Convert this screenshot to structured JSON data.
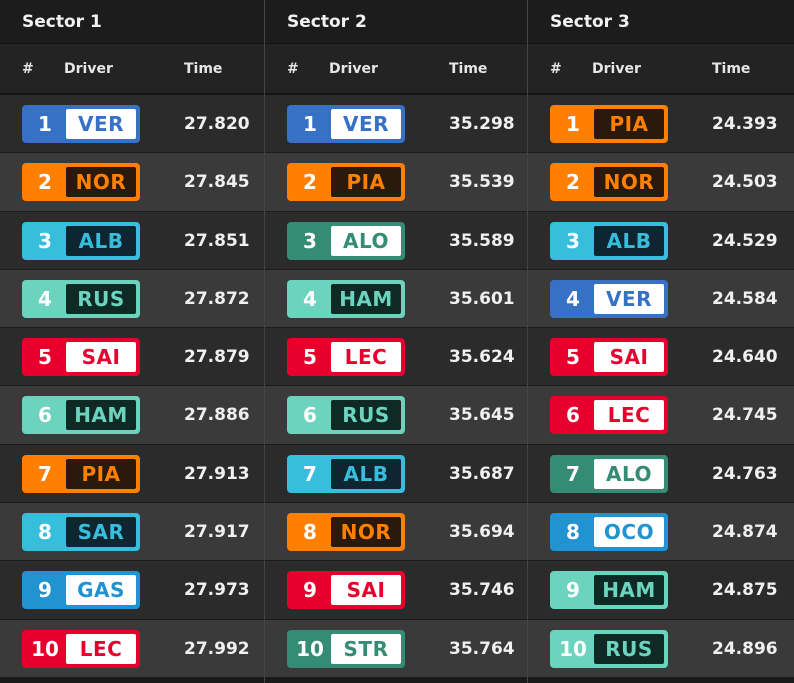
{
  "headers": {
    "pos": "#",
    "driver": "Driver",
    "time": "Time"
  },
  "teams": {
    "redbull": {
      "primary": "#3671c6",
      "inner": "#ffffff",
      "text": "#3671c6"
    },
    "mclaren": {
      "primary": "#ff8000",
      "inner": "#2a1a0c",
      "text": "#ff8000"
    },
    "williams": {
      "primary": "#37bedd",
      "inner": "#0f2530",
      "text": "#37bedd"
    },
    "mercedes": {
      "primary": "#6cd3bf",
      "inner": "#0f2a25",
      "text": "#6cd3bf"
    },
    "ferrari": {
      "primary": "#e8002d",
      "inner": "#ffffff",
      "text": "#e8002d"
    },
    "alpine": {
      "primary": "#2293d1",
      "inner": "#ffffff",
      "text": "#2293d1"
    },
    "aston": {
      "primary": "#358c75",
      "inner": "#ffffff",
      "text": "#358c75"
    }
  },
  "sectors": [
    {
      "title": "Sector 1",
      "rows": [
        {
          "pos": "1",
          "code": "VER",
          "team": "redbull",
          "time": "27.820"
        },
        {
          "pos": "2",
          "code": "NOR",
          "team": "mclaren",
          "time": "27.845"
        },
        {
          "pos": "3",
          "code": "ALB",
          "team": "williams",
          "time": "27.851"
        },
        {
          "pos": "4",
          "code": "RUS",
          "team": "mercedes",
          "time": "27.872"
        },
        {
          "pos": "5",
          "code": "SAI",
          "team": "ferrari",
          "time": "27.879"
        },
        {
          "pos": "6",
          "code": "HAM",
          "team": "mercedes",
          "time": "27.886"
        },
        {
          "pos": "7",
          "code": "PIA",
          "team": "mclaren",
          "time": "27.913"
        },
        {
          "pos": "8",
          "code": "SAR",
          "team": "williams",
          "time": "27.917"
        },
        {
          "pos": "9",
          "code": "GAS",
          "team": "alpine",
          "time": "27.973"
        },
        {
          "pos": "10",
          "code": "LEC",
          "team": "ferrari",
          "time": "27.992"
        }
      ]
    },
    {
      "title": "Sector 2",
      "rows": [
        {
          "pos": "1",
          "code": "VER",
          "team": "redbull",
          "time": "35.298"
        },
        {
          "pos": "2",
          "code": "PIA",
          "team": "mclaren",
          "time": "35.539"
        },
        {
          "pos": "3",
          "code": "ALO",
          "team": "aston",
          "time": "35.589"
        },
        {
          "pos": "4",
          "code": "HAM",
          "team": "mercedes",
          "time": "35.601"
        },
        {
          "pos": "5",
          "code": "LEC",
          "team": "ferrari",
          "time": "35.624"
        },
        {
          "pos": "6",
          "code": "RUS",
          "team": "mercedes",
          "time": "35.645"
        },
        {
          "pos": "7",
          "code": "ALB",
          "team": "williams",
          "time": "35.687"
        },
        {
          "pos": "8",
          "code": "NOR",
          "team": "mclaren",
          "time": "35.694"
        },
        {
          "pos": "9",
          "code": "SAI",
          "team": "ferrari",
          "time": "35.746"
        },
        {
          "pos": "10",
          "code": "STR",
          "team": "aston",
          "time": "35.764"
        }
      ]
    },
    {
      "title": "Sector 3",
      "rows": [
        {
          "pos": "1",
          "code": "PIA",
          "team": "mclaren",
          "time": "24.393"
        },
        {
          "pos": "2",
          "code": "NOR",
          "team": "mclaren",
          "time": "24.503"
        },
        {
          "pos": "3",
          "code": "ALB",
          "team": "williams",
          "time": "24.529"
        },
        {
          "pos": "4",
          "code": "VER",
          "team": "redbull",
          "time": "24.584"
        },
        {
          "pos": "5",
          "code": "SAI",
          "team": "ferrari",
          "time": "24.640"
        },
        {
          "pos": "6",
          "code": "LEC",
          "team": "ferrari",
          "time": "24.745"
        },
        {
          "pos": "7",
          "code": "ALO",
          "team": "aston",
          "time": "24.763"
        },
        {
          "pos": "8",
          "code": "OCO",
          "team": "alpine",
          "time": "24.874"
        },
        {
          "pos": "9",
          "code": "HAM",
          "team": "mercedes",
          "time": "24.875"
        },
        {
          "pos": "10",
          "code": "RUS",
          "team": "mercedes",
          "time": "24.896"
        }
      ]
    }
  ]
}
